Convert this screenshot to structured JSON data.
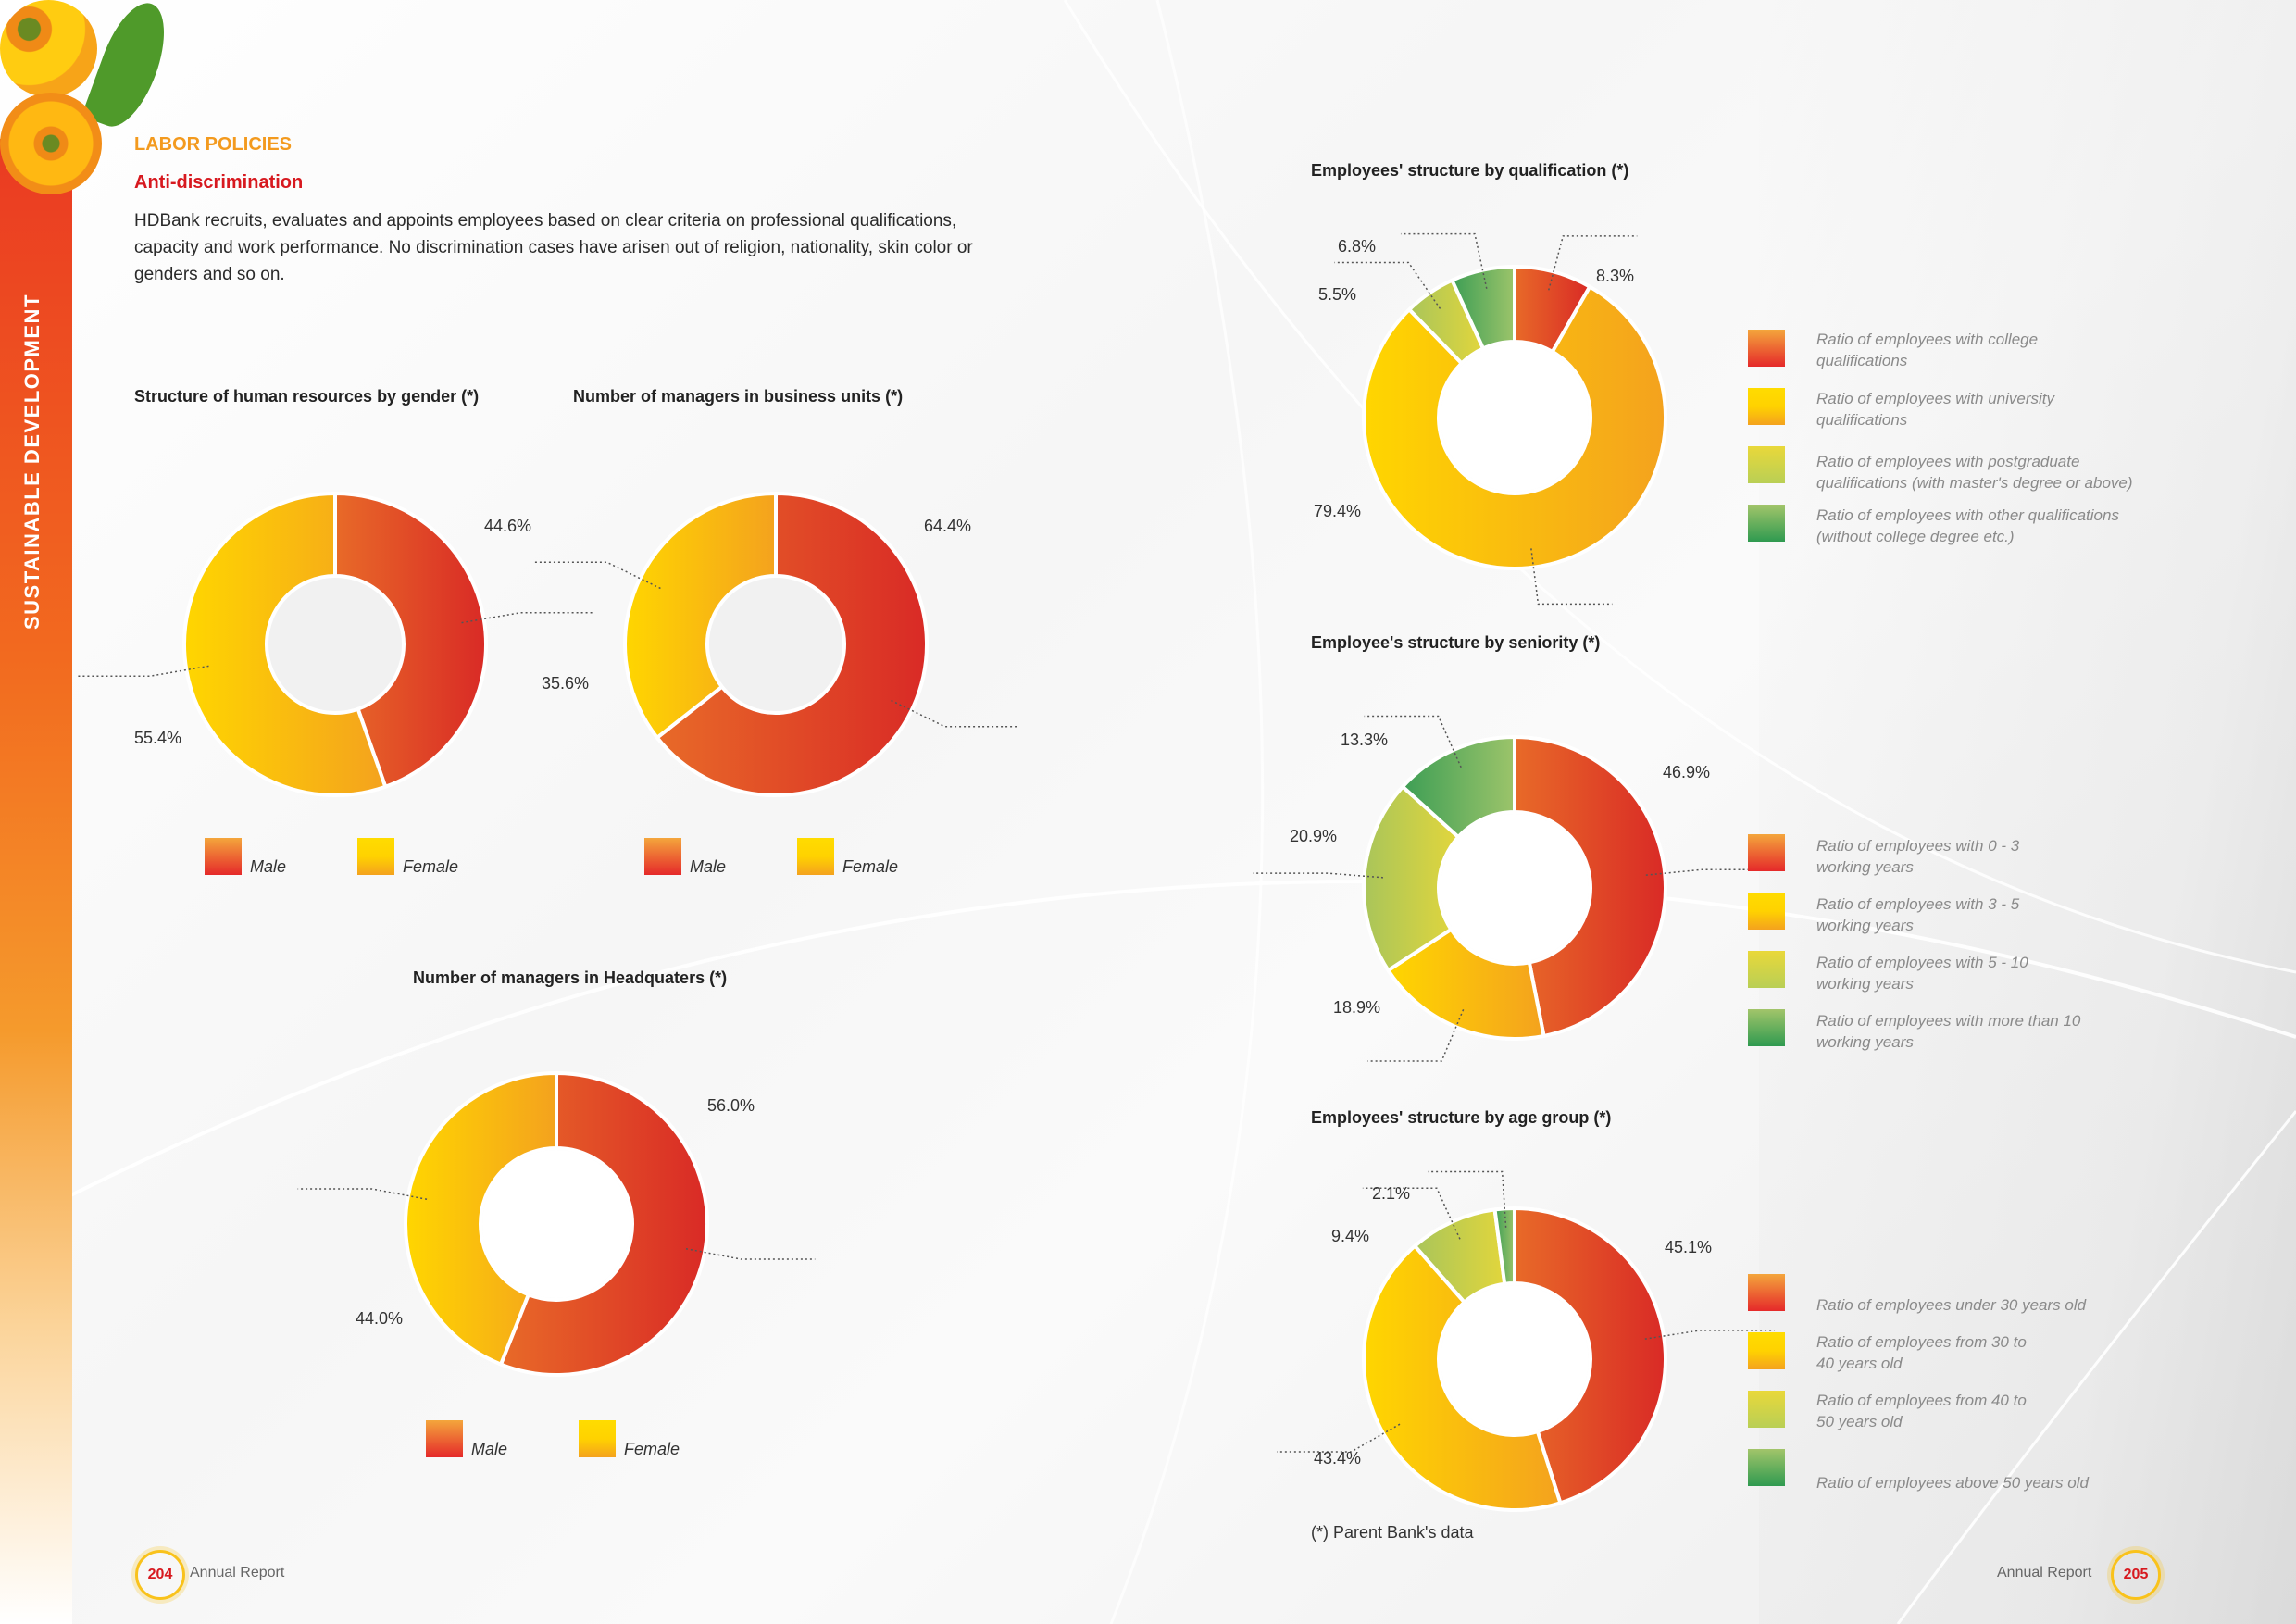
{
  "sidebar": {
    "section_label": "SUSTAINABLE DEVELOPMENT"
  },
  "header": {
    "section_title": "LABOR POLICIES",
    "subsection_title": "Anti-discrimination",
    "paragraph": "HDBank recruits, evaluates and appoints employees based on clear criteria on professional qualifications, capacity and work performance. No discrimination cases have arisen out of religion, nationality, skin color or genders and so on."
  },
  "colors": {
    "accent_orange": "#f39a1e",
    "accent_red": "#d7191f",
    "male_gradient": [
      "#e86a28",
      "#d92a26"
    ],
    "female_gradient": [
      "#ffd600",
      "#f4a21e"
    ],
    "light_green_gradient": [
      "#c2cf53",
      "#e2d63c"
    ],
    "green_gradient": [
      "#3d9e55",
      "#9cc46a"
    ]
  },
  "chart_data": [
    {
      "id": "gender",
      "type": "pie",
      "title": "Structure of human resources by gender (*)",
      "categories": [
        "Male",
        "Female"
      ],
      "values": [
        44.6,
        55.4
      ],
      "labels": [
        "44.6%",
        "55.4%"
      ],
      "legend": [
        "Male",
        "Female"
      ],
      "legend_placement": "bottom"
    },
    {
      "id": "business_units",
      "type": "pie",
      "title": "Number of managers in business units (*)",
      "categories": [
        "Male",
        "Female"
      ],
      "values": [
        64.4,
        35.6
      ],
      "labels": [
        "64.4%",
        "35.6%"
      ],
      "legend": [
        "Male",
        "Female"
      ],
      "legend_placement": "bottom"
    },
    {
      "id": "headquarters",
      "type": "pie",
      "title": "Number of managers in Headquaters (*)",
      "categories": [
        "Male",
        "Female"
      ],
      "values": [
        56.0,
        44.0
      ],
      "labels": [
        "56.0%",
        "44.0%"
      ],
      "legend": [
        "Male",
        "Female"
      ],
      "legend_placement": "bottom"
    },
    {
      "id": "qualification",
      "type": "pie",
      "title": "Employees' structure by qualification (*)",
      "categories": [
        "College",
        "University",
        "Postgraduate",
        "Other"
      ],
      "values": [
        8.3,
        79.4,
        5.5,
        6.8
      ],
      "labels": [
        "8.3%",
        "79.4%",
        "5.5%",
        "6.8%"
      ],
      "legend": [
        "Ratio of employees with college qualifications",
        "Ratio of employees with university qualifications",
        "Ratio of employees with postgraduate qualifications (with master's degree or above)",
        "Ratio of employees with other qualifications (without college degree etc.)"
      ],
      "legend_placement": "right"
    },
    {
      "id": "seniority",
      "type": "pie",
      "title": "Employee's structure by seniority (*)",
      "categories": [
        "0 - 3 years",
        "3 - 5 years",
        "5 - 10 years",
        "More than 10 years"
      ],
      "values": [
        46.9,
        18.9,
        20.9,
        13.3
      ],
      "labels": [
        "46.9%",
        "18.9%",
        "20.9%",
        "13.3%"
      ],
      "legend": [
        "Ratio of employees with 0 - 3 working years",
        "Ratio of employees with 3 - 5 working years",
        "Ratio of employees with 5 - 10 working years",
        "Ratio of employees with more than 10 working years"
      ],
      "legend_placement": "right"
    },
    {
      "id": "age",
      "type": "pie",
      "title": "Employees' structure by age group (*)",
      "categories": [
        "Under 30",
        "30 to 40",
        "40 to 50",
        "Above 50"
      ],
      "values": [
        45.1,
        43.4,
        9.4,
        2.1
      ],
      "labels": [
        "45.1%",
        "43.4%",
        "9.4%",
        "2.1%"
      ],
      "legend": [
        "Ratio of employees under 30 years old",
        "Ratio of employees from 30 to 40 years old",
        "Ratio of employees from 40 to 50 years old",
        "Ratio of employees above 50 years old"
      ],
      "legend_placement": "right"
    }
  ],
  "footnote": "(*) Parent Bank's data",
  "footer": {
    "left_page": "204",
    "right_page": "205",
    "label": "Annual Report"
  }
}
